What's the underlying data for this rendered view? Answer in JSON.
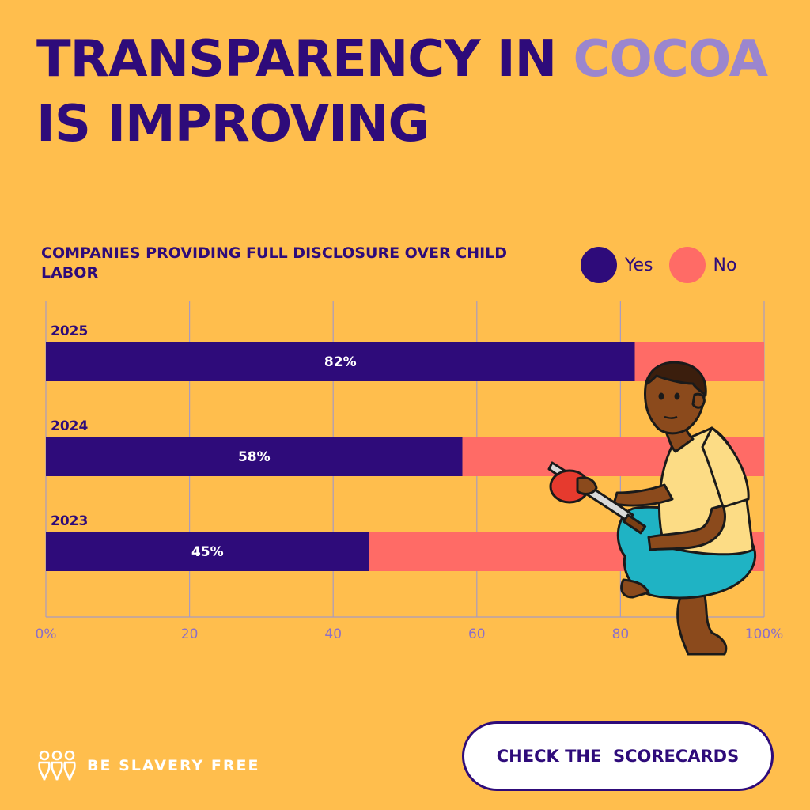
{
  "colors": {
    "background": "#FFBE4D",
    "brand": "#2E0B7A",
    "yes": "#2E0B7A",
    "no": "#FF6B66",
    "title_highlight": "#9B86CE",
    "axis_text": "#8C6FC8",
    "grid": "#A99BC0"
  },
  "title": {
    "part1": "TRANSPARENCY IN ",
    "highlight": "COCOA",
    "part2": " IS IMPROVING"
  },
  "legend": {
    "yes": "Yes",
    "no": "No"
  },
  "chart_data": {
    "type": "bar",
    "orientation": "horizontal",
    "stacked": true,
    "title": "COMPANIES PROVIDING FULL DISCLOSURE OVER CHILD LABOR",
    "categories": [
      "2025",
      "2024",
      "2023"
    ],
    "series": [
      {
        "name": "Yes",
        "values": [
          82,
          58,
          45
        ],
        "labels": [
          "82%",
          "58%",
          "45%"
        ]
      },
      {
        "name": "No",
        "values": [
          18,
          42,
          55
        ]
      }
    ],
    "xlim": [
      0,
      100
    ],
    "xticks": [
      0,
      20,
      40,
      60,
      80,
      100
    ],
    "xtick_labels": [
      "0%",
      "20",
      "40",
      "60",
      "80",
      "100%"
    ],
    "grid": true,
    "legend_position": "top-right"
  },
  "illustration": {
    "name": "boy-cutting-cocoa-pod"
  },
  "footer": {
    "brand": "BE SLAVERY FREE",
    "cta": "CHECK THE  SCORECARDS"
  }
}
